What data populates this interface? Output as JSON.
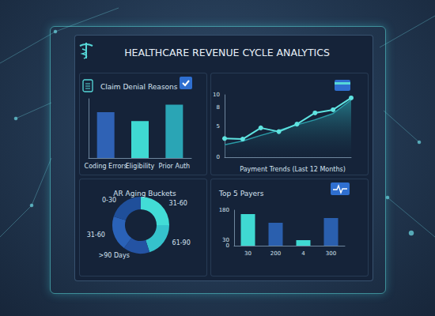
{
  "title": "HEALTHCARE REVENUE CYCLE ANALYTICS",
  "chart_data": [
    {
      "type": "bar",
      "title": "Claim Denial Reasons",
      "categories": [
        "Coding Errors",
        "Eligibility",
        "Prior Auth"
      ],
      "values": [
        62,
        50,
        72
      ],
      "colors": [
        "#2f62b5",
        "#3fd9d2",
        "#2aa5b5"
      ],
      "ylim": [
        0,
        80
      ],
      "tick_labels": "x",
      "grid": false
    },
    {
      "type": "line",
      "title": "Payment Trends (Last 12 Months)",
      "categories": [
        null,
        null,
        null,
        null,
        null,
        null,
        null,
        null
      ],
      "series": [
        {
          "type": "area",
          "color": "#2a9aa6",
          "values": [
            2.0,
            2.6,
            3.5,
            4.3,
            5.2,
            6.0,
            7.0,
            9.2
          ]
        },
        {
          "type": "line",
          "color": "#5fe3e0",
          "marker": "circle",
          "values": [
            3.0,
            2.9,
            4.7,
            4.1,
            5.3,
            7.1,
            7.6,
            9.5
          ]
        }
      ],
      "ylim": [
        0,
        10
      ],
      "yticks": [
        0,
        5,
        8,
        10
      ],
      "tick_labels": "y",
      "grid": false
    },
    {
      "type": "donut",
      "title": "AR Aging Buckets",
      "categories": [
        "31-60",
        "61-90",
        ">90 Days",
        "31-60",
        "0-30"
      ],
      "values": [
        25,
        20,
        15,
        20,
        20
      ],
      "colors": [
        "#42dcd6",
        "#35c2cc",
        "#2453a3",
        "#2a62b8",
        "#1f4f9a"
      ]
    },
    {
      "type": "bar",
      "title": "Top 5 Payers",
      "categories": [
        "30",
        "200",
        "4",
        "300"
      ],
      "values": [
        160,
        116,
        28,
        140
      ],
      "colors": [
        "#3fd9d2",
        "#2a5fae",
        "#3fd9d2",
        "#2a5fae"
      ],
      "ylim": [
        0,
        180
      ],
      "yticks": [
        0,
        30,
        180
      ],
      "grid": false
    }
  ]
}
